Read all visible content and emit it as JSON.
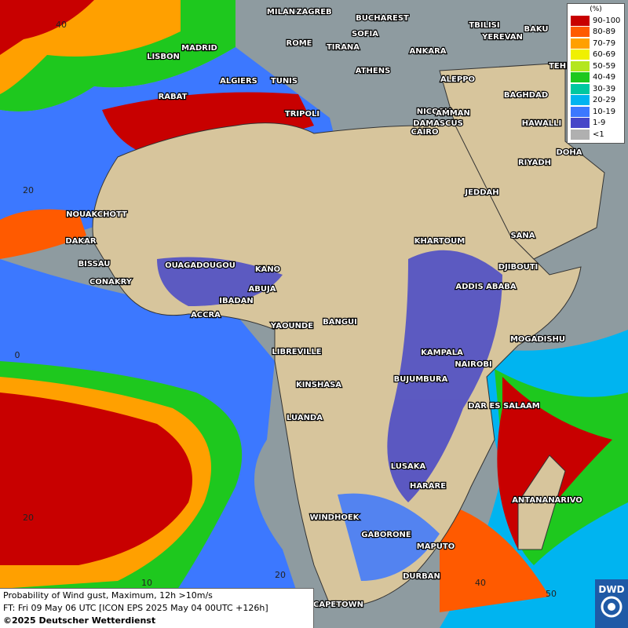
{
  "map": {
    "cities": [
      "MILAN",
      "ZAGREB",
      "BUCHAREST",
      "TBILISI",
      "BAKU",
      "MADRID",
      "ROME",
      "SOFIA",
      "YEREVAN",
      "LISBON",
      "TIRANA",
      "ANKARA",
      "TEHRAN",
      "ALGIERS",
      "TUNIS",
      "ATHENS",
      "RABAT",
      "ALEPPO",
      "NICOSIA",
      "BAGHDAD",
      "DAMASCUS",
      "TRIPOLI",
      "AMMAN",
      "HAWALLI",
      "CAIRO",
      "DOHA",
      "RIYADH",
      "JEDDAH",
      "NOUAKCHOTT",
      "DAKAR",
      "SANA",
      "KHARTOUM",
      "BISSAU",
      "OUAGADOUGOU",
      "DJIBOUTI",
      "CONAKRY",
      "KANO",
      "ABUJA",
      "ADDIS ABABA",
      "IBADAN",
      "ACCRA",
      "YAOUNDE",
      "BANGUI",
      "MOGADISHU",
      "LIBREVILLE",
      "KAMPALA",
      "NAIROBI",
      "KINSHASA",
      "BUJUMBURA",
      "DAR ES SALAAM",
      "LUANDA",
      "LUSAKA",
      "HARARE",
      "ANTANANARIVO",
      "WINDHOEK",
      "GABORONE",
      "MAPUTO",
      "DURBAN",
      "CAPETOWN"
    ],
    "grid_labels": [
      "40",
      "20",
      "0",
      "20",
      "10",
      "20",
      "40",
      "50"
    ]
  },
  "legend": {
    "title": "(%)",
    "entries": [
      {
        "label": "90-100",
        "color": "#c80000"
      },
      {
        "label": "80-89",
        "color": "#ff5a00"
      },
      {
        "label": "70-79",
        "color": "#ffa000"
      },
      {
        "label": "60-69",
        "color": "#f0f000"
      },
      {
        "label": "50-59",
        "color": "#b4e61e"
      },
      {
        "label": "40-49",
        "color": "#1ec81e"
      },
      {
        "label": "30-39",
        "color": "#00c8a0"
      },
      {
        "label": "20-29",
        "color": "#00b4f0"
      },
      {
        "label": "10-19",
        "color": "#3c78ff"
      },
      {
        "label": "1-9",
        "color": "#4646c8"
      },
      {
        "label": "<1",
        "color": "#b0b0b0"
      }
    ]
  },
  "footer": {
    "line1": "Probability of Wind gust, Maximum, 12h >10m/s",
    "line2": "FT: Fri 09 May 06 UTC [ICON EPS 2025 May 04 00UTC +126h]",
    "copyright": "©2025 Deutscher Wetterdienst"
  },
  "logo": "DWD"
}
